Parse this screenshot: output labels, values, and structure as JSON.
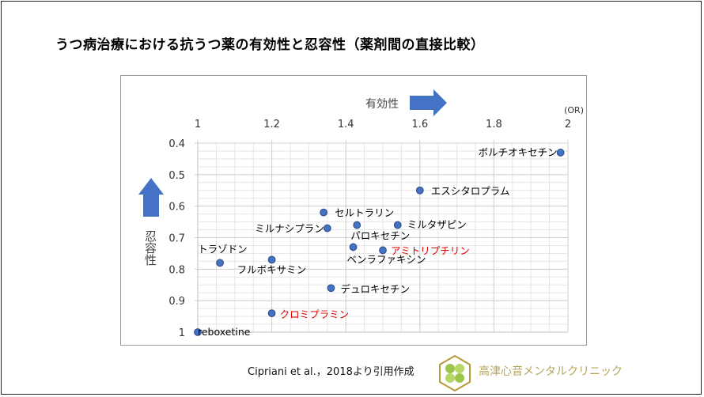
{
  "title": "うつ病治療における抗うつ薬の有効性と忍容性（薬剤間の直接比較）",
  "citation": "Cipriani et al.，2018より引用作成",
  "clinic_name": "高津心音メンタルクリニック",
  "colors": {
    "marker": "#4472c4",
    "marker_edge": "#2f528f",
    "arrow": "#4472c4",
    "highlight": "#e00000",
    "normal_label": "#000000",
    "clinic": "#b5a55a"
  },
  "chart_data": {
    "type": "scatter",
    "title": "",
    "xlabel": "有効性",
    "x_unit": "(OR)",
    "ylabel": "忍容性",
    "xlim": [
      1,
      2
    ],
    "ylim": [
      0.4,
      1
    ],
    "y_inverted": true,
    "x_axis_position": "top",
    "grid": true,
    "x_ticks": [
      "1",
      "1.2",
      "1.4",
      "1.6",
      "1.8",
      "2"
    ],
    "y_ticks": [
      "0.4",
      "0.5",
      "0.6",
      "0.7",
      "0.8",
      "0.9",
      "1"
    ],
    "points": [
      {
        "label": "ボルチオキセチン",
        "x": 1.98,
        "y": 0.43,
        "highlight": false
      },
      {
        "label": "エスシタロプラム",
        "x": 1.6,
        "y": 0.55,
        "highlight": false
      },
      {
        "label": "セルトラリン",
        "x": 1.34,
        "y": 0.62,
        "highlight": false
      },
      {
        "label": "ミルナシプラン",
        "x": 1.35,
        "y": 0.67,
        "highlight": false
      },
      {
        "label": "パロキセチン",
        "x": 1.43,
        "y": 0.66,
        "highlight": false
      },
      {
        "label": "ミルタザピン",
        "x": 1.54,
        "y": 0.66,
        "highlight": false
      },
      {
        "label": "ベンラファキシン",
        "x": 1.42,
        "y": 0.73,
        "highlight": false
      },
      {
        "label": "アミトリプチリン",
        "x": 1.5,
        "y": 0.74,
        "highlight": true
      },
      {
        "label": "トラゾドン",
        "x": 1.06,
        "y": 0.78,
        "highlight": false
      },
      {
        "label": "フルボキサミン",
        "x": 1.2,
        "y": 0.77,
        "highlight": false
      },
      {
        "label": "デュロキセチン",
        "x": 1.36,
        "y": 0.86,
        "highlight": false
      },
      {
        "label": "クロミプラミン",
        "x": 1.2,
        "y": 0.94,
        "highlight": true
      },
      {
        "label": "reboxetine",
        "x": 1.0,
        "y": 1.0,
        "highlight": false
      }
    ]
  }
}
